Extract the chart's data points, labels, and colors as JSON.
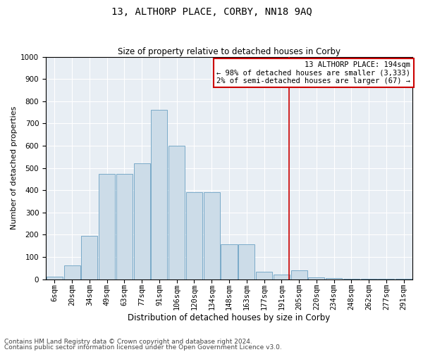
{
  "title": "13, ALTHORP PLACE, CORBY, NN18 9AQ",
  "subtitle": "Size of property relative to detached houses in Corby",
  "xlabel": "Distribution of detached houses by size in Corby",
  "ylabel": "Number of detached properties",
  "footnote1": "Contains HM Land Registry data © Crown copyright and database right 2024.",
  "footnote2": "Contains public sector information licensed under the Open Government Licence v3.0.",
  "annotation_title": "13 ALTHORP PLACE: 194sqm",
  "annotation_line1": "← 98% of detached houses are smaller (3,333)",
  "annotation_line2": "2% of semi-detached houses are larger (67) →",
  "bar_color": "#ccdce8",
  "bar_edge_color": "#7aaac8",
  "vline_color": "#cc0000",
  "annotation_box_edge_color": "#cc0000",
  "background_color": "#e8eef4",
  "categories": [
    "6sqm",
    "20sqm",
    "34sqm",
    "49sqm",
    "63sqm",
    "77sqm",
    "91sqm",
    "106sqm",
    "120sqm",
    "134sqm",
    "148sqm",
    "163sqm",
    "177sqm",
    "191sqm",
    "205sqm",
    "220sqm",
    "234sqm",
    "248sqm",
    "262sqm",
    "277sqm",
    "291sqm"
  ],
  "values": [
    10,
    62,
    195,
    475,
    475,
    520,
    760,
    600,
    390,
    390,
    158,
    158,
    35,
    20,
    40,
    7,
    5,
    2,
    2,
    2,
    2
  ],
  "vline_x_index": 13.45,
  "ylim": [
    0,
    1000
  ],
  "yticks": [
    0,
    100,
    200,
    300,
    400,
    500,
    600,
    700,
    800,
    900,
    1000
  ],
  "title_fontsize": 10,
  "subtitle_fontsize": 8.5,
  "xlabel_fontsize": 8.5,
  "ylabel_fontsize": 8,
  "tick_fontsize": 7.5,
  "annotation_fontsize": 7.5,
  "footnote_fontsize": 6.5
}
